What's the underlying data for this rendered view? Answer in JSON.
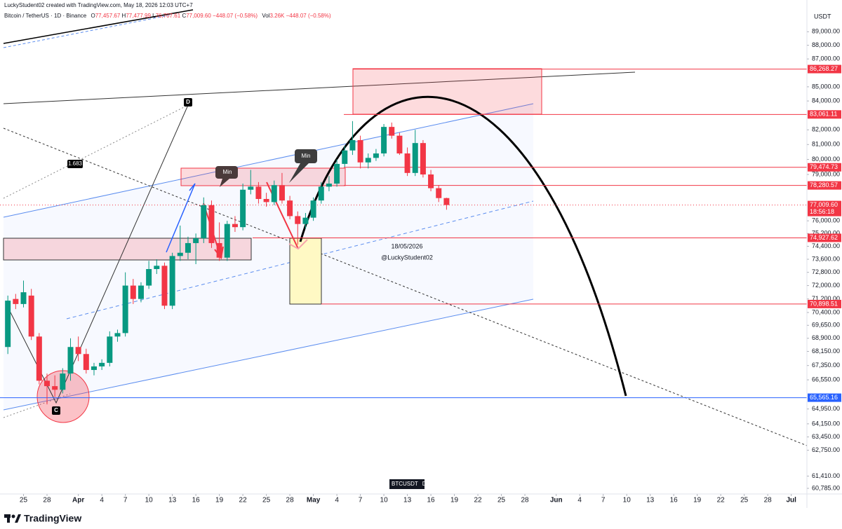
{
  "header": {
    "author_line": "LuckyStudent02 created with TradingView.com, May 18, 2026 12:03 UTC+7",
    "symbol": "Bitcoin / TetherUS · 1D · Binance",
    "ohlc": [
      {
        "key": "O",
        "value": "77,457.67"
      },
      {
        "key": "H",
        "value": "77,477.99"
      },
      {
        "key": "L",
        "value": "76,707.61"
      },
      {
        "key": "C",
        "value": "77,009.60"
      }
    ],
    "change": "−448.07 (−0.58%)",
    "volume_key": "Vol",
    "volume": "3.26K",
    "volume_change": "−448.07 (−0.58%)"
  },
  "annotations": {
    "point_d": "D",
    "point_c": "C",
    "ratio": "1.683",
    "note_1": "Min",
    "note_2": "Min",
    "date_note": "18/05/2026",
    "author_note": "@LuckyStudent02",
    "symbol_badge": "BTCUSDT",
    "interval_badge": "D"
  },
  "footer": {
    "brand": "TradingView"
  },
  "chart_data": {
    "type": "candlestick",
    "currency": "USDT",
    "yscale": "log",
    "ylim": [
      60500,
      89800
    ],
    "xlim": [
      "2026-03-22",
      "2026-07-03"
    ],
    "up_color": "#089981",
    "down_color": "#f23645",
    "x": [
      "2026-03-23",
      "2026-03-24",
      "2026-03-25",
      "2026-03-26",
      "2026-03-27",
      "2026-03-28",
      "2026-03-29",
      "2026-03-30",
      "2026-03-31",
      "2026-04-01",
      "2026-04-02",
      "2026-04-03",
      "2026-04-04",
      "2026-04-05",
      "2026-04-06",
      "2026-04-07",
      "2026-04-08",
      "2026-04-09",
      "2026-04-10",
      "2026-04-11",
      "2026-04-12",
      "2026-04-13",
      "2026-04-14",
      "2026-04-15",
      "2026-04-16",
      "2026-04-17",
      "2026-04-18",
      "2026-04-19",
      "2026-04-20",
      "2026-04-21",
      "2026-04-22",
      "2026-04-23",
      "2026-04-24",
      "2026-04-25",
      "2026-04-26",
      "2026-04-27",
      "2026-04-28",
      "2026-04-29",
      "2026-04-30",
      "2026-05-01",
      "2026-05-02",
      "2026-05-03",
      "2026-05-04",
      "2026-05-05",
      "2026-05-06",
      "2026-05-07",
      "2026-05-08",
      "2026-05-09",
      "2026-05-10",
      "2026-05-11",
      "2026-05-12",
      "2026-05-13",
      "2026-05-14",
      "2026-05-15",
      "2026-05-16",
      "2026-05-17",
      "2026-05-18"
    ],
    "open": [
      68400,
      71200,
      70900,
      71400,
      69000,
      66500,
      66200,
      66000,
      66900,
      68400,
      68000,
      67100,
      67300,
      67500,
      69000,
      69200,
      72000,
      71200,
      72000,
      73000,
      73200,
      70800,
      73800,
      74000,
      74600,
      74900,
      77000,
      74600,
      73700,
      75800,
      75600,
      78000,
      78200,
      77400,
      77200,
      78300,
      77300,
      76300,
      75800,
      76200,
      77300,
      78200,
      78400,
      79700,
      80600,
      81300,
      79800,
      80100,
      80400,
      82200,
      81600,
      80400,
      79100,
      81100,
      79000,
      78100,
      77457.67
    ],
    "high": [
      71400,
      71500,
      72300,
      71800,
      69200,
      66900,
      66800,
      67200,
      68900,
      69000,
      68300,
      67500,
      67700,
      69300,
      69400,
      72800,
      72400,
      72200,
      73500,
      73600,
      73400,
      74000,
      75700,
      75000,
      75200,
      77500,
      77300,
      75900,
      76000,
      76300,
      78400,
      79300,
      78500,
      77800,
      78600,
      79100,
      77600,
      76600,
      76500,
      77500,
      78500,
      78900,
      80000,
      80900,
      82600,
      81600,
      80400,
      80700,
      82400,
      82500,
      81800,
      80800,
      82000,
      81300,
      79300,
      78300,
      77477.99
    ],
    "low": [
      68000,
      70600,
      70700,
      68800,
      66300,
      65200,
      65600,
      65800,
      66500,
      67600,
      66900,
      66800,
      67100,
      67300,
      68700,
      69000,
      70900,
      71000,
      71800,
      72700,
      70600,
      70600,
      73500,
      73600,
      73300,
      74600,
      74300,
      73500,
      73500,
      75300,
      75400,
      77700,
      77100,
      76900,
      77000,
      77100,
      76100,
      74500,
      75500,
      76000,
      77100,
      77900,
      78200,
      79500,
      80300,
      79400,
      79400,
      79900,
      80200,
      81400,
      80300,
      78900,
      78900,
      78800,
      77900,
      77200,
      76707.61
    ],
    "close": [
      71100,
      70900,
      71600,
      69000,
      66500,
      66200,
      66000,
      66900,
      68400,
      68000,
      67100,
      67300,
      67500,
      69000,
      69200,
      72000,
      71200,
      72000,
      73000,
      73200,
      70800,
      73800,
      74000,
      74600,
      74900,
      77000,
      74600,
      73700,
      75800,
      75600,
      78000,
      78200,
      77400,
      77200,
      78300,
      77300,
      76300,
      75800,
      76200,
      77300,
      78200,
      78400,
      79700,
      80600,
      81300,
      79800,
      80100,
      80400,
      82200,
      81600,
      80400,
      79100,
      81100,
      79000,
      78100,
      77457.67,
      77009.6
    ],
    "yticks": [
      {
        "value": 89000,
        "label": "89,000.00"
      },
      {
        "value": 88000,
        "label": "88,000.00"
      },
      {
        "value": 87000,
        "label": "87,000.00"
      },
      {
        "value": 85000,
        "label": "85,000.00"
      },
      {
        "value": 84000,
        "label": "84,000.00"
      },
      {
        "value": 82000,
        "label": "82,000.00"
      },
      {
        "value": 81000,
        "label": "81,000.00"
      },
      {
        "value": 80000,
        "label": "80,000.00"
      },
      {
        "value": 79000,
        "label": "79,000.00"
      },
      {
        "value": 76000,
        "label": "76,000.00"
      },
      {
        "value": 75200,
        "label": "75,200.00"
      },
      {
        "value": 74400,
        "label": "74,400.00"
      },
      {
        "value": 73600,
        "label": "73,600.00"
      },
      {
        "value": 72800,
        "label": "72,800.00"
      },
      {
        "value": 72000,
        "label": "72,000.00"
      },
      {
        "value": 71200,
        "label": "71,200.00"
      },
      {
        "value": 70400,
        "label": "70,400.00"
      },
      {
        "value": 69650,
        "label": "69,650.00"
      },
      {
        "value": 68900,
        "label": "68,900.00"
      },
      {
        "value": 68150,
        "label": "68,150.00"
      },
      {
        "value": 67350,
        "label": "67,350.00"
      },
      {
        "value": 66550,
        "label": "66,550.00"
      },
      {
        "value": 64950,
        "label": "64,950.00"
      },
      {
        "value": 64150,
        "label": "64,150.00"
      },
      {
        "value": 63450,
        "label": "63,450.00"
      },
      {
        "value": 62750,
        "label": "62,750.00"
      },
      {
        "value": 61410,
        "label": "61,410.00"
      },
      {
        "value": 60785,
        "label": "60,785.00"
      }
    ],
    "xticks": [
      {
        "value": "2026-03-25",
        "label": "25"
      },
      {
        "value": "2026-03-28",
        "label": "28"
      },
      {
        "value": "2026-04-01",
        "label": "Apr"
      },
      {
        "value": "2026-04-04",
        "label": "4"
      },
      {
        "value": "2026-04-07",
        "label": "7"
      },
      {
        "value": "2026-04-10",
        "label": "10"
      },
      {
        "value": "2026-04-13",
        "label": "13"
      },
      {
        "value": "2026-04-16",
        "label": "16"
      },
      {
        "value": "2026-04-19",
        "label": "19"
      },
      {
        "value": "2026-04-22",
        "label": "22"
      },
      {
        "value": "2026-04-25",
        "label": "25"
      },
      {
        "value": "2026-04-28",
        "label": "28"
      },
      {
        "value": "2026-05-01",
        "label": "May"
      },
      {
        "value": "2026-05-04",
        "label": "4"
      },
      {
        "value": "2026-05-07",
        "label": "7"
      },
      {
        "value": "2026-05-10",
        "label": "10"
      },
      {
        "value": "2026-05-13",
        "label": "13"
      },
      {
        "value": "2026-05-16",
        "label": "16"
      },
      {
        "value": "2026-05-19",
        "label": "19"
      },
      {
        "value": "2026-05-22",
        "label": "22"
      },
      {
        "value": "2026-05-25",
        "label": "25"
      },
      {
        "value": "2026-05-28",
        "label": "28"
      },
      {
        "value": "2026-06-01",
        "label": "Jun"
      },
      {
        "value": "2026-06-04",
        "label": "4"
      },
      {
        "value": "2026-06-07",
        "label": "7"
      },
      {
        "value": "2026-06-10",
        "label": "10"
      },
      {
        "value": "2026-06-13",
        "label": "13"
      },
      {
        "value": "2026-06-16",
        "label": "16"
      },
      {
        "value": "2026-06-19",
        "label": "19"
      },
      {
        "value": "2026-06-22",
        "label": "22"
      },
      {
        "value": "2026-06-25",
        "label": "25"
      },
      {
        "value": "2026-06-28",
        "label": "28"
      },
      {
        "value": "2026-07-01",
        "label": "Jul"
      }
    ],
    "price_lines": [
      {
        "value": 86268.27,
        "label": "86,268.27",
        "color": "#f23645"
      },
      {
        "value": 83061.11,
        "label": "83,061.11",
        "color": "#f23645"
      },
      {
        "value": 79474.73,
        "label": "79,474.73",
        "color": "#f23645"
      },
      {
        "value": 78280.57,
        "label": "78,280.57",
        "color": "#f23645"
      },
      {
        "value": 74927.62,
        "label": "74,927.62",
        "color": "#f23645"
      },
      {
        "value": 70898.51,
        "label": "70,898.51",
        "color": "#f23645"
      },
      {
        "value": 65565.16,
        "label": "65,565.16",
        "color": "#2962ff"
      }
    ],
    "last_price": {
      "value": 77009.6,
      "label": "77,009.60",
      "countdown": "18:56:18",
      "color": "#f23645"
    }
  }
}
